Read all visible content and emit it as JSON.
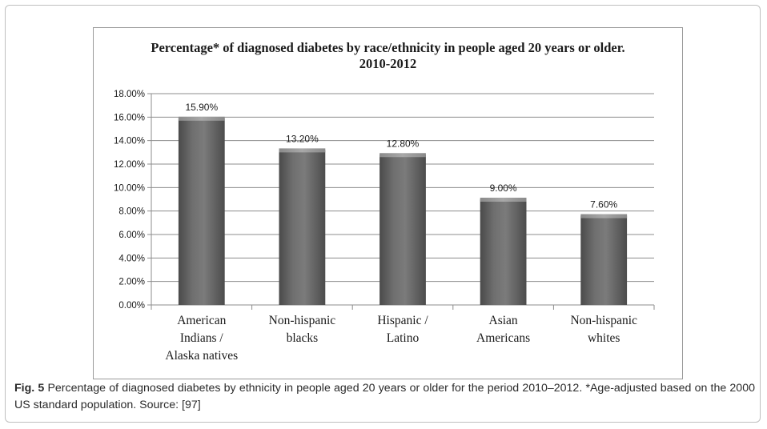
{
  "chart_data": {
    "type": "bar",
    "title": "Percentage* of diagnosed diabetes by race/ethnicity in people aged 20 years or older. 2010-2012",
    "categories": [
      "American Indians / Alaska natives",
      "Non-hispanic blacks",
      "Hispanic / Latino",
      "Asian Americans",
      "Non-hispanic whites"
    ],
    "category_lines": [
      [
        "American",
        "Indians /",
        "Alaska natives"
      ],
      [
        "Non-hispanic",
        "blacks"
      ],
      [
        "Hispanic /",
        "Latino"
      ],
      [
        "Asian",
        "Americans"
      ],
      [
        "Non-hispanic",
        "whites"
      ]
    ],
    "values": [
      15.9,
      13.2,
      12.8,
      9.0,
      7.6
    ],
    "data_labels": [
      "15.90%",
      "13.20%",
      "12.80%",
      "9.00%",
      "7.60%"
    ],
    "yticks": [
      0,
      2,
      4,
      6,
      8,
      10,
      12,
      14,
      16,
      18
    ],
    "ytick_labels": [
      "0.00%",
      "2.00%",
      "4.00%",
      "6.00%",
      "8.00%",
      "10.00%",
      "12.00%",
      "14.00%",
      "16.00%",
      "18.00%"
    ],
    "ylim": [
      0,
      18
    ],
    "xlabel": "",
    "ylabel": "",
    "grid": true,
    "legend": "none",
    "bar_color": "#6e6e6e"
  },
  "caption": {
    "label": "Fig. 5",
    "text": " Percentage of diagnosed diabetes by ethnicity in people aged 20 years or older for the period 2010–2012. *Age-adjusted based on the 2000 US standard population. Source: [97]"
  }
}
